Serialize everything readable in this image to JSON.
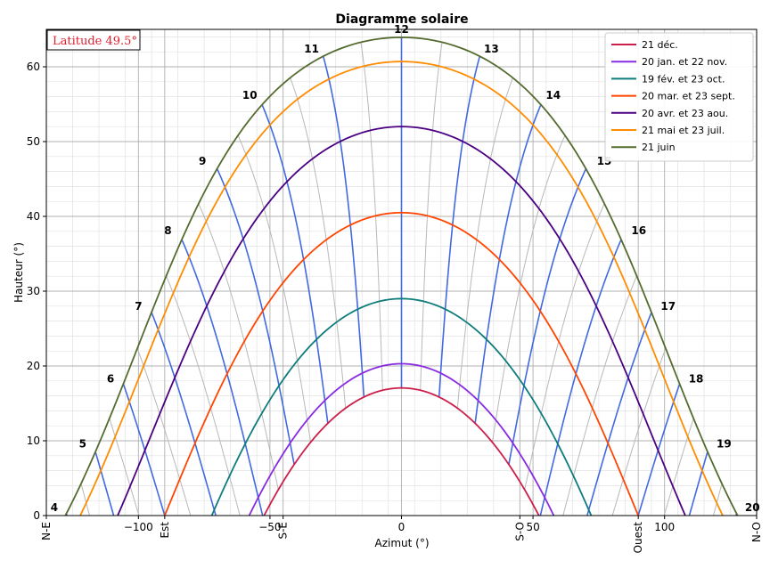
{
  "chart_data": {
    "type": "line",
    "title": "Diagramme solaire",
    "xlabel": "Azimut (°)",
    "ylabel": "Hauteur (°)",
    "xlim": [
      -135,
      135
    ],
    "ylim": [
      0,
      65
    ],
    "x_ticks": [
      -100,
      -50,
      0,
      50,
      100
    ],
    "y_ticks": [
      0,
      10,
      20,
      30,
      40,
      50,
      60
    ],
    "direction_labels": [
      {
        "label": "N-E",
        "x": -135
      },
      {
        "label": "Est",
        "x": -90
      },
      {
        "label": "S-E",
        "x": -45
      },
      {
        "label": "S-O",
        "x": 45
      },
      {
        "label": "Ouest",
        "x": 90
      },
      {
        "label": "N-O",
        "x": 135
      }
    ],
    "annotation": "Latitude 49.5°",
    "latitude": 49.5,
    "grid": true,
    "minor_grid": true,
    "legend_position": "top-right",
    "series": [
      {
        "name": "21 déc.",
        "declination": -23.44,
        "color": "#cc1f4a",
        "points": [
          [
            -53.1,
            0
          ],
          [
            -48.0,
            4.7
          ],
          [
            -38.6,
            9.3
          ],
          [
            -27.5,
            13.2
          ],
          [
            -14.2,
            15.9
          ],
          [
            0,
            17.1
          ],
          [
            14.2,
            15.9
          ],
          [
            27.5,
            13.2
          ],
          [
            38.6,
            9.3
          ],
          [
            48.0,
            4.7
          ],
          [
            53.1,
            0
          ]
        ]
      },
      {
        "name": "20 jan. et 22 nov.",
        "declination": -20.2,
        "color": "#8a2be2",
        "points": [
          [
            -58.0,
            0
          ],
          [
            -40.0,
            11.9
          ],
          [
            -20.0,
            18.3
          ],
          [
            0,
            20.3
          ],
          [
            20.0,
            18.3
          ],
          [
            40.0,
            11.9
          ],
          [
            58.0,
            0
          ]
        ]
      },
      {
        "name": "19 fév. et 23 oct.",
        "declination": -11.5,
        "color": "#0e7c7b",
        "points": [
          [
            -72.4,
            0
          ],
          [
            -50.0,
            15.8
          ],
          [
            -25.0,
            25.8
          ],
          [
            0,
            29.0
          ],
          [
            25.0,
            25.8
          ],
          [
            50.0,
            15.8
          ],
          [
            72.4,
            0
          ]
        ]
      },
      {
        "name": "20 mar. et 23 sept.",
        "declination": 0,
        "color": "#ff4500",
        "points": [
          [
            -90,
            0
          ],
          [
            -65.0,
            20.0
          ],
          [
            -35.0,
            35.0
          ],
          [
            0,
            40.5
          ],
          [
            35.0,
            35.0
          ],
          [
            65.0,
            20.0
          ],
          [
            90,
            0
          ]
        ]
      },
      {
        "name": "20 avr. et 23 aou.",
        "declination": 11.5,
        "color": "#4b0082",
        "points": [
          [
            -107.8,
            0
          ],
          [
            -80.0,
            25.0
          ],
          [
            -45.0,
            44.0
          ],
          [
            0,
            52.0
          ],
          [
            45.0,
            44.0
          ],
          [
            80.0,
            25.0
          ],
          [
            107.8,
            0
          ]
        ]
      },
      {
        "name": "21 mai et 23 juil.",
        "declination": 20.2,
        "color": "#ff8c00",
        "points": [
          [
            -122.0,
            0
          ],
          [
            -90.0,
            29.5
          ],
          [
            -50.0,
            51.0
          ],
          [
            0,
            60.7
          ],
          [
            50.0,
            51.0
          ],
          [
            90.0,
            29.5
          ],
          [
            122.0,
            0
          ]
        ]
      },
      {
        "name": "21 juin",
        "declination": 23.44,
        "color": "#556b2f",
        "points": [
          [
            -127.7,
            0
          ],
          [
            -90.0,
            35.0
          ],
          [
            -50.0,
            54.0
          ],
          [
            0,
            63.9
          ],
          [
            50.0,
            54.0
          ],
          [
            90.0,
            35.0
          ],
          [
            127.7,
            0
          ]
        ]
      }
    ],
    "hour_lines": [
      {
        "hour": 4,
        "solstice_point": [
          -129.2,
          0
        ]
      },
      {
        "hour": 5,
        "solstice_point": [
          -118.4,
          8.5
        ]
      },
      {
        "hour": 6,
        "solstice_point": [
          -107.8,
          17.2
        ]
      },
      {
        "hour": 7,
        "solstice_point": [
          -97.2,
          26.9
        ]
      },
      {
        "hour": 8,
        "solstice_point": [
          -86.0,
          37.0
        ]
      },
      {
        "hour": 9,
        "solstice_point": [
          -72.9,
          46.3
        ]
      },
      {
        "hour": 10,
        "solstice_point": [
          -53.5,
          55.1
        ]
      },
      {
        "hour": 11,
        "solstice_point": [
          -30.0,
          61.3
        ]
      },
      {
        "hour": 12,
        "solstice_point": [
          0,
          63.9
        ]
      },
      {
        "hour": 13,
        "solstice_point": [
          30.0,
          61.3
        ]
      },
      {
        "hour": 14,
        "solstice_point": [
          53.5,
          55.1
        ]
      },
      {
        "hour": 15,
        "solstice_point": [
          72.9,
          46.3
        ]
      },
      {
        "hour": 16,
        "solstice_point": [
          86.0,
          37.0
        ]
      },
      {
        "hour": 17,
        "solstice_point": [
          97.2,
          26.9
        ]
      },
      {
        "hour": 18,
        "solstice_point": [
          107.8,
          17.2
        ]
      },
      {
        "hour": 19,
        "solstice_point": [
          118.4,
          8.5
        ]
      },
      {
        "hour": 20,
        "solstice_point": [
          129.2,
          0
        ]
      }
    ],
    "half_hour_lines": true,
    "hour_line_color": "#4169e1",
    "half_hour_line_color": "#b8b8b8"
  }
}
